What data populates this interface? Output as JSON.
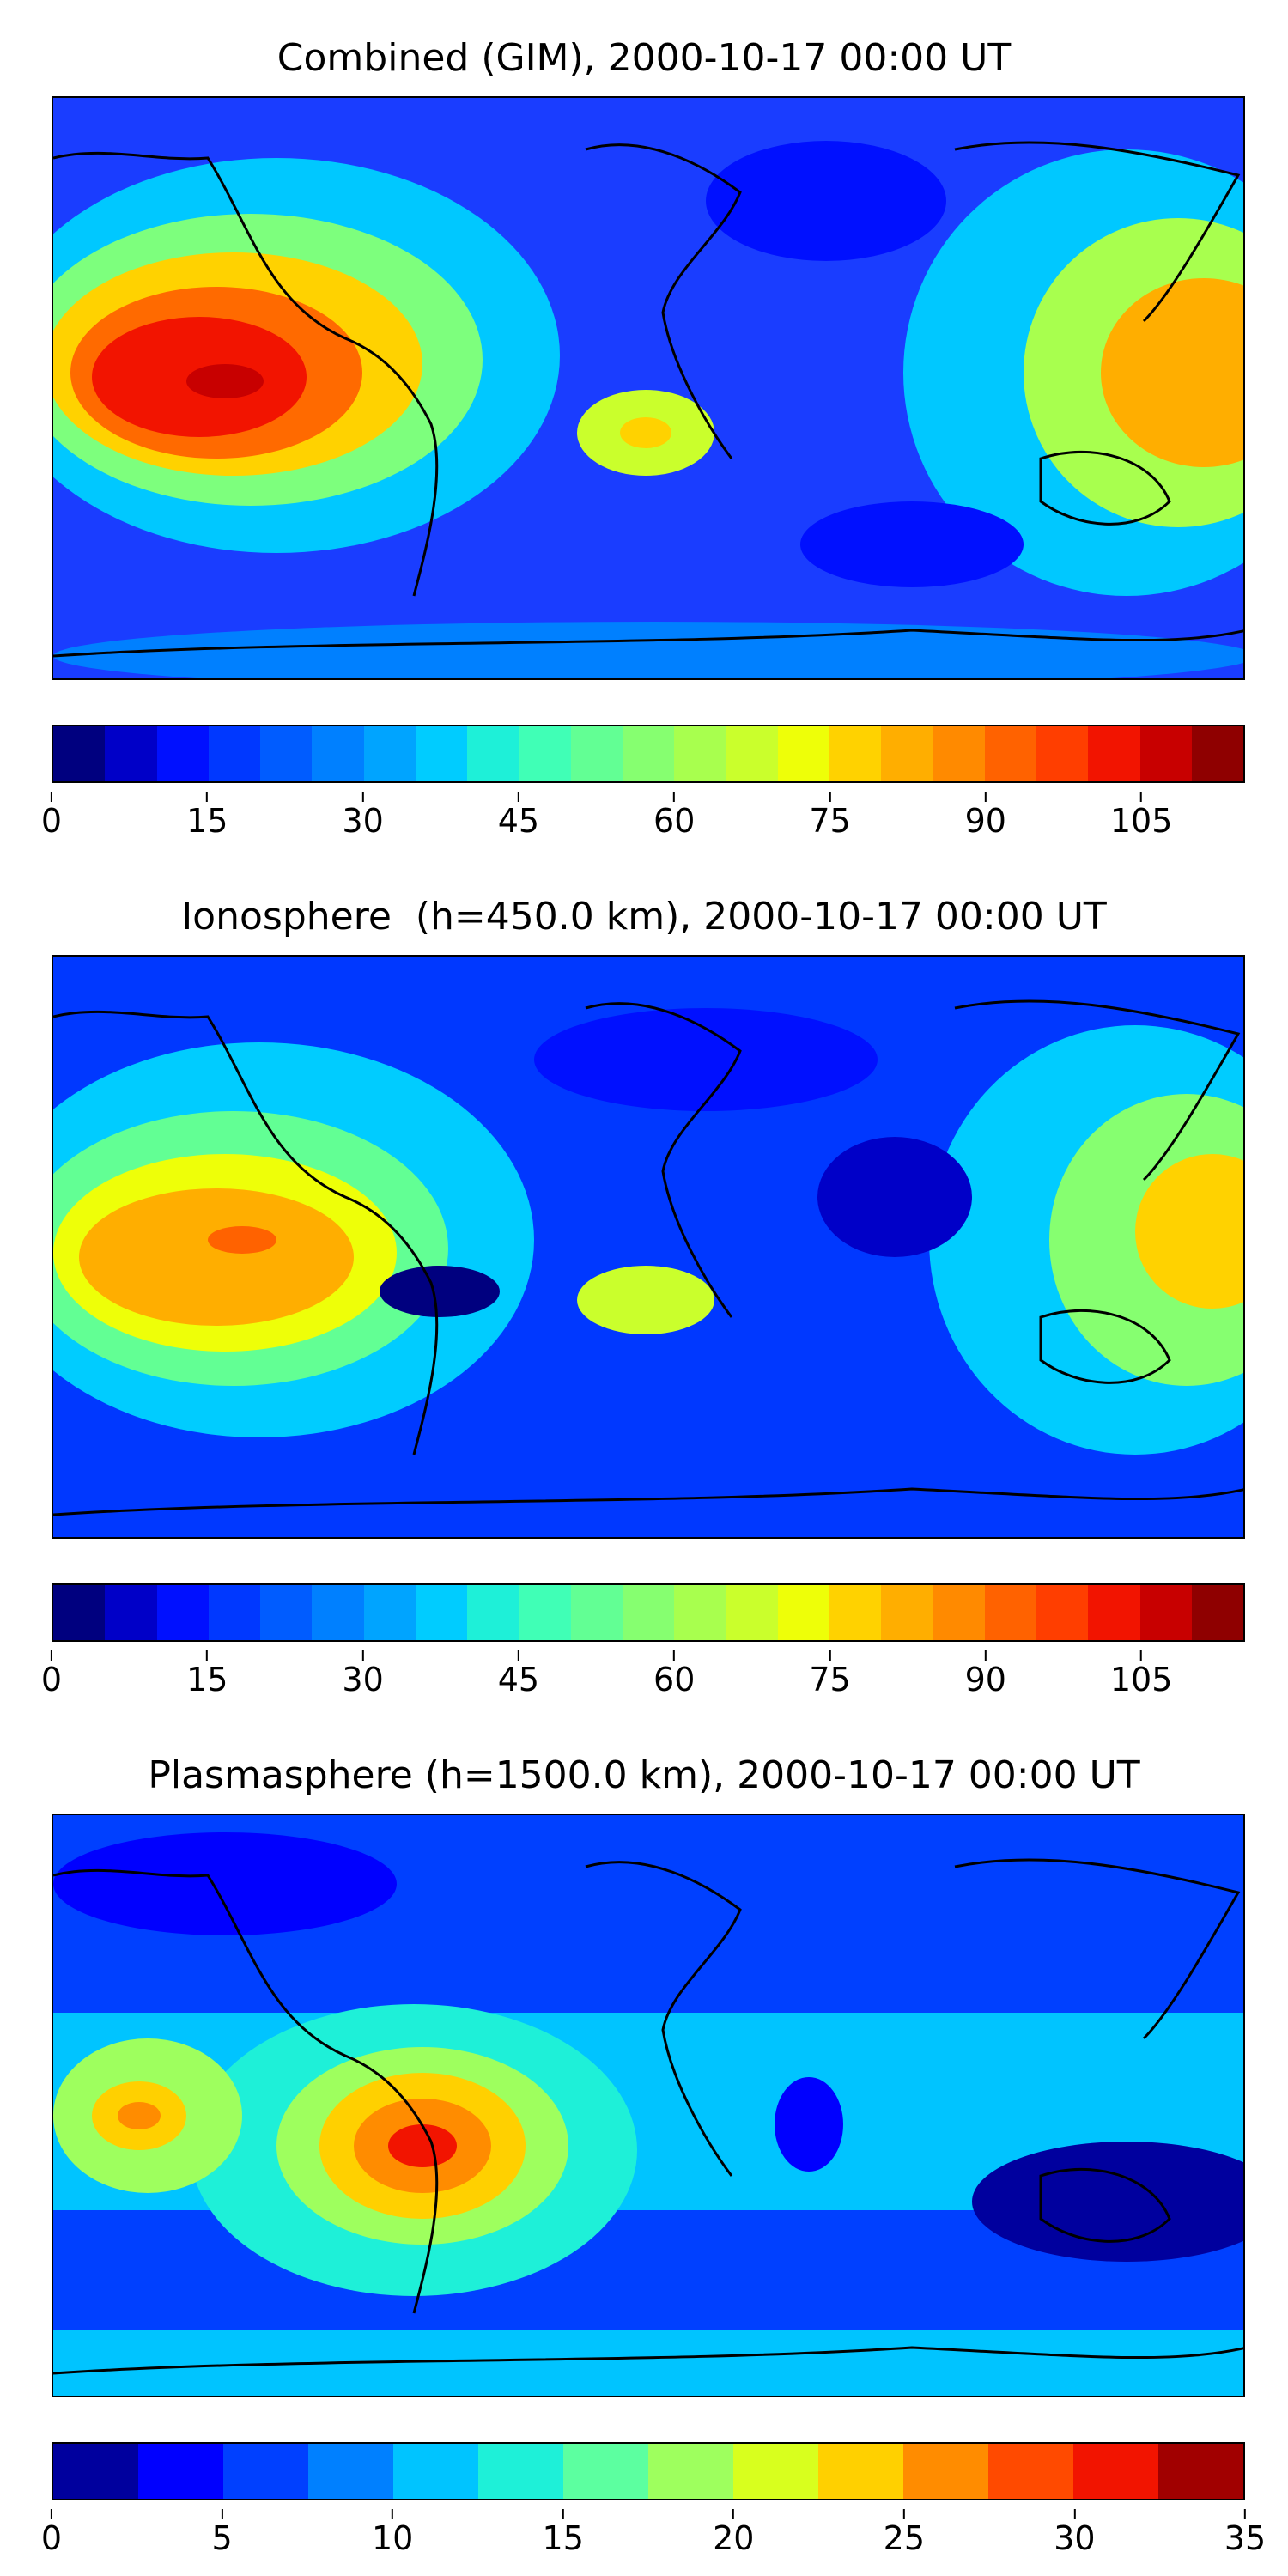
{
  "panels": [
    {
      "title": "Combined (GIM), 2000-10-17 00:00 UT",
      "colorbar": {
        "colors": [
          "#00007f",
          "#0000c8",
          "#0010ff",
          "#0038ff",
          "#005cff",
          "#0080ff",
          "#00a4ff",
          "#00ccff",
          "#1ef0d8",
          "#40ffb6",
          "#62ff94",
          "#86ff70",
          "#a8ff4e",
          "#caff2c",
          "#eeff08",
          "#ffd200",
          "#ffae00",
          "#ff8a00",
          "#ff6200",
          "#ff3e00",
          "#f21400",
          "#c80000",
          "#8f0000"
        ],
        "ticks": [
          "0",
          "15",
          "30",
          "45",
          "60",
          "75",
          "90",
          "105"
        ],
        "tick_values": [
          0,
          15,
          30,
          45,
          60,
          75,
          90,
          105
        ],
        "vmax": 115
      },
      "map_type": "gim"
    },
    {
      "title": "Ionosphere  (h=450.0 km), 2000-10-17 00:00 UT",
      "colorbar": {
        "colors": [
          "#00007f",
          "#0000c8",
          "#0010ff",
          "#0038ff",
          "#005cff",
          "#0080ff",
          "#00a4ff",
          "#00ccff",
          "#1ef0d8",
          "#40ffb6",
          "#62ff94",
          "#86ff70",
          "#a8ff4e",
          "#caff2c",
          "#eeff08",
          "#ffd200",
          "#ffae00",
          "#ff8a00",
          "#ff6200",
          "#ff3e00",
          "#f21400",
          "#c80000",
          "#8f0000"
        ],
        "ticks": [
          "0",
          "15",
          "30",
          "45",
          "60",
          "75",
          "90",
          "105"
        ],
        "tick_values": [
          0,
          15,
          30,
          45,
          60,
          75,
          90,
          105
        ],
        "vmax": 115
      },
      "map_type": "iono"
    },
    {
      "title": "Plasmasphere (h=1500.0 km), 2000-10-17 00:00 UT",
      "colorbar": {
        "colors": [
          "#00009e",
          "#0000ff",
          "#0040ff",
          "#0080ff",
          "#00c4ff",
          "#1ef0d8",
          "#5cffa0",
          "#9eff5e",
          "#d8ff1e",
          "#ffd000",
          "#ff8c00",
          "#ff4a00",
          "#f21400",
          "#a10000"
        ],
        "ticks": [
          "0",
          "5",
          "10",
          "15",
          "20",
          "25",
          "30",
          "35"
        ],
        "tick_values": [
          0,
          5,
          10,
          15,
          20,
          25,
          30,
          35
        ],
        "vmax": 35
      },
      "map_type": "plasma"
    }
  ]
}
